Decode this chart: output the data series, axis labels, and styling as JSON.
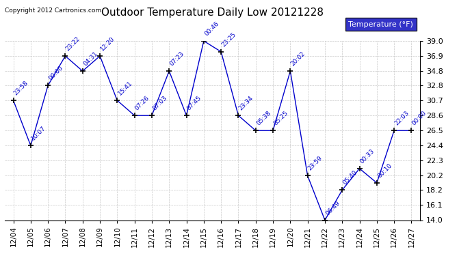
{
  "title": "Outdoor Temperature Daily Low 20121228",
  "copyright": "Copyright 2012 Cartronics.com",
  "legend_label": "Temperature (°F)",
  "background_color": "#ffffff",
  "line_color": "#0000cc",
  "marker_color": "#000000",
  "grid_color": "#bbbbbb",
  "ylim": [
    14.0,
    39.0
  ],
  "yticks": [
    14.0,
    16.1,
    18.2,
    20.2,
    22.3,
    24.4,
    26.5,
    28.6,
    30.7,
    32.8,
    34.8,
    36.9,
    39.0
  ],
  "data": [
    {
      "date": "12/04",
      "time": "23:58",
      "temp": 30.7
    },
    {
      "date": "12/05",
      "time": "10:07",
      "temp": 24.4
    },
    {
      "date": "12/06",
      "time": "00:00",
      "temp": 32.8
    },
    {
      "date": "12/07",
      "time": "23:22",
      "temp": 36.9
    },
    {
      "date": "12/08",
      "time": "04:31",
      "temp": 34.8
    },
    {
      "date": "12/09",
      "time": "12:20",
      "temp": 36.9
    },
    {
      "date": "12/10",
      "time": "15:41",
      "temp": 30.7
    },
    {
      "date": "12/11",
      "time": "07:26",
      "temp": 28.6
    },
    {
      "date": "12/12",
      "time": "07:03",
      "temp": 28.6
    },
    {
      "date": "12/13",
      "time": "07:23",
      "temp": 34.8
    },
    {
      "date": "12/14",
      "time": "07:45",
      "temp": 28.6
    },
    {
      "date": "12/15",
      "time": "00:46",
      "temp": 39.0
    },
    {
      "date": "12/16",
      "time": "23:25",
      "temp": 37.5
    },
    {
      "date": "12/17",
      "time": "23:34",
      "temp": 28.6
    },
    {
      "date": "12/18",
      "time": "05:38",
      "temp": 26.5
    },
    {
      "date": "12/19",
      "time": "05:25",
      "temp": 26.5
    },
    {
      "date": "12/20",
      "time": "20:02",
      "temp": 34.8
    },
    {
      "date": "12/21",
      "time": "23:59",
      "temp": 20.2
    },
    {
      "date": "12/22",
      "time": "06:49",
      "temp": 14.0
    },
    {
      "date": "12/23",
      "time": "05:40",
      "temp": 18.2
    },
    {
      "date": "12/24",
      "time": "00:33",
      "temp": 21.2
    },
    {
      "date": "12/25",
      "time": "00:10",
      "temp": 19.2
    },
    {
      "date": "12/26",
      "time": "22:03",
      "temp": 26.5
    },
    {
      "date": "12/27",
      "time": "00:00",
      "temp": 26.5
    }
  ]
}
